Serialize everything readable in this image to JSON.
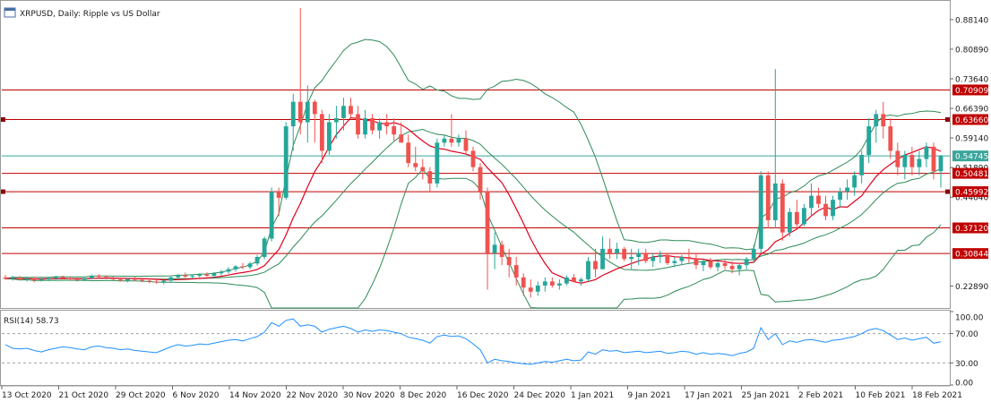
{
  "chart_data": [
    {
      "type": "candlestick",
      "title": "XRPUSD, Daily:  Ripple vs US Dollar",
      "ylim": [
        0.175,
        0.925
      ],
      "y_ticks": [
        0.8814,
        0.8089,
        0.7364,
        0.6639,
        0.5914,
        0.5189,
        0.4464,
        0.2289
      ],
      "y_tick_labels": [
        "0.88140",
        "0.80890",
        "0.73640",
        "0.66390",
        "0.59140",
        "0.51890",
        "0.44640",
        "0.22890"
      ],
      "x_labels": [
        "13 Oct 2020",
        "21 Oct 2020",
        "29 Oct 2020",
        "6 Nov 2020",
        "14 Nov 2020",
        "22 Nov 2020",
        "30 Nov 2020",
        "8 Dec 2020",
        "16 Dec 2020",
        "24 Dec 2020",
        "1 Jan 2021",
        "9 Jan 2021",
        "17 Jan 2021",
        "25 Jan 2021",
        "2 Feb 2021",
        "10 Feb 2021",
        "18 Feb 2021"
      ],
      "current_price": 0.54745,
      "current_price_label": "0.54745",
      "levels": [
        {
          "value": 0.70909,
          "label": "0.70909"
        },
        {
          "value": 0.6366,
          "label": "0.63660"
        },
        {
          "value": 0.50481,
          "label": "0.50481"
        },
        {
          "value": 0.45992,
          "label": "0.45992"
        },
        {
          "value": 0.3712,
          "label": "0.37120"
        },
        {
          "value": 0.30844,
          "label": "0.30844"
        }
      ],
      "indicators": [
        "Bollinger Bands",
        "Moving Average"
      ],
      "colors": {
        "bull": "#26a69a",
        "bear": "#ef5350",
        "level": "#c00000",
        "bollinger": "#2e8b57",
        "ma": "#e0001b",
        "current": "#3aa59a"
      },
      "candles": [
        [
          0.25,
          0.256,
          0.244,
          0.247
        ],
        [
          0.247,
          0.254,
          0.242,
          0.249
        ],
        [
          0.249,
          0.253,
          0.243,
          0.245
        ],
        [
          0.245,
          0.252,
          0.24,
          0.247
        ],
        [
          0.247,
          0.251,
          0.238,
          0.243
        ],
        [
          0.243,
          0.249,
          0.24,
          0.246
        ],
        [
          0.246,
          0.251,
          0.241,
          0.248
        ],
        [
          0.248,
          0.254,
          0.244,
          0.251
        ],
        [
          0.251,
          0.254,
          0.245,
          0.248
        ],
        [
          0.248,
          0.252,
          0.243,
          0.246
        ],
        [
          0.246,
          0.25,
          0.24,
          0.244
        ],
        [
          0.244,
          0.25,
          0.241,
          0.248
        ],
        [
          0.248,
          0.257,
          0.245,
          0.254
        ],
        [
          0.254,
          0.258,
          0.248,
          0.251
        ],
        [
          0.251,
          0.255,
          0.245,
          0.249
        ],
        [
          0.249,
          0.253,
          0.243,
          0.245
        ],
        [
          0.245,
          0.25,
          0.24,
          0.243
        ],
        [
          0.243,
          0.248,
          0.238,
          0.246
        ],
        [
          0.246,
          0.251,
          0.241,
          0.244
        ],
        [
          0.244,
          0.249,
          0.238,
          0.242
        ],
        [
          0.242,
          0.247,
          0.236,
          0.24
        ],
        [
          0.24,
          0.245,
          0.234,
          0.238
        ],
        [
          0.238,
          0.244,
          0.233,
          0.242
        ],
        [
          0.242,
          0.252,
          0.239,
          0.25
        ],
        [
          0.25,
          0.258,
          0.246,
          0.255
        ],
        [
          0.255,
          0.262,
          0.249,
          0.252
        ],
        [
          0.252,
          0.257,
          0.247,
          0.254
        ],
        [
          0.254,
          0.26,
          0.249,
          0.257
        ],
        [
          0.257,
          0.262,
          0.251,
          0.254
        ],
        [
          0.254,
          0.263,
          0.25,
          0.26
        ],
        [
          0.26,
          0.268,
          0.255,
          0.264
        ],
        [
          0.264,
          0.275,
          0.259,
          0.27
        ],
        [
          0.27,
          0.28,
          0.264,
          0.277
        ],
        [
          0.277,
          0.285,
          0.27,
          0.275
        ],
        [
          0.275,
          0.288,
          0.27,
          0.284
        ],
        [
          0.284,
          0.305,
          0.279,
          0.3
        ],
        [
          0.3,
          0.35,
          0.294,
          0.345
        ],
        [
          0.345,
          0.47,
          0.338,
          0.46
        ],
        [
          0.46,
          0.47,
          0.4,
          0.445
        ],
        [
          0.445,
          0.63,
          0.44,
          0.62
        ],
        [
          0.62,
          0.7,
          0.56,
          0.68
        ],
        [
          0.68,
          0.91,
          0.6,
          0.63
        ],
        [
          0.63,
          0.72,
          0.58,
          0.68
        ],
        [
          0.68,
          0.685,
          0.58,
          0.65
        ],
        [
          0.65,
          0.66,
          0.53,
          0.56
        ],
        [
          0.56,
          0.65,
          0.55,
          0.63
        ],
        [
          0.63,
          0.67,
          0.59,
          0.64
        ],
        [
          0.64,
          0.69,
          0.61,
          0.67
        ],
        [
          0.67,
          0.69,
          0.64,
          0.65
        ],
        [
          0.65,
          0.67,
          0.59,
          0.6
        ],
        [
          0.6,
          0.66,
          0.59,
          0.64
        ],
        [
          0.64,
          0.65,
          0.6,
          0.61
        ],
        [
          0.61,
          0.64,
          0.59,
          0.63
        ],
        [
          0.63,
          0.65,
          0.6,
          0.62
        ],
        [
          0.62,
          0.64,
          0.585,
          0.6
        ],
        [
          0.6,
          0.63,
          0.58,
          0.58
        ],
        [
          0.58,
          0.6,
          0.52,
          0.53
        ],
        [
          0.53,
          0.57,
          0.51,
          0.52
        ],
        [
          0.52,
          0.54,
          0.49,
          0.51
        ],
        [
          0.51,
          0.52,
          0.46,
          0.48
        ],
        [
          0.48,
          0.59,
          0.47,
          0.58
        ],
        [
          0.58,
          0.6,
          0.57,
          0.59
        ],
        [
          0.59,
          0.65,
          0.57,
          0.58
        ],
        [
          0.58,
          0.6,
          0.57,
          0.59
        ],
        [
          0.59,
          0.61,
          0.55,
          0.56
        ],
        [
          0.56,
          0.57,
          0.51,
          0.52
        ],
        [
          0.52,
          0.53,
          0.44,
          0.46
        ],
        [
          0.46,
          0.47,
          0.22,
          0.31
        ],
        [
          0.31,
          0.36,
          0.27,
          0.33
        ],
        [
          0.33,
          0.34,
          0.28,
          0.3
        ],
        [
          0.3,
          0.32,
          0.25,
          0.28
        ],
        [
          0.28,
          0.3,
          0.23,
          0.25
        ],
        [
          0.25,
          0.26,
          0.205,
          0.225
        ],
        [
          0.225,
          0.245,
          0.2,
          0.215
        ],
        [
          0.215,
          0.24,
          0.205,
          0.23
        ],
        [
          0.23,
          0.25,
          0.215,
          0.24
        ],
        [
          0.24,
          0.25,
          0.225,
          0.23
        ],
        [
          0.23,
          0.245,
          0.22,
          0.235
        ],
        [
          0.235,
          0.255,
          0.23,
          0.25
        ],
        [
          0.25,
          0.258,
          0.238,
          0.24
        ],
        [
          0.24,
          0.25,
          0.23,
          0.245
        ],
        [
          0.245,
          0.3,
          0.24,
          0.29
        ],
        [
          0.29,
          0.32,
          0.25,
          0.27
        ],
        [
          0.27,
          0.35,
          0.27,
          0.32
        ],
        [
          0.32,
          0.345,
          0.295,
          0.31
        ],
        [
          0.31,
          0.335,
          0.295,
          0.32
        ],
        [
          0.32,
          0.325,
          0.29,
          0.295
        ],
        [
          0.295,
          0.32,
          0.27,
          0.3
        ],
        [
          0.3,
          0.32,
          0.28,
          0.31
        ],
        [
          0.31,
          0.32,
          0.285,
          0.29
        ],
        [
          0.29,
          0.31,
          0.275,
          0.3
        ],
        [
          0.3,
          0.315,
          0.285,
          0.305
        ],
        [
          0.305,
          0.31,
          0.28,
          0.285
        ],
        [
          0.285,
          0.3,
          0.275,
          0.29
        ],
        [
          0.29,
          0.305,
          0.28,
          0.3
        ],
        [
          0.3,
          0.32,
          0.285,
          0.295
        ],
        [
          0.295,
          0.31,
          0.27,
          0.28
        ],
        [
          0.28,
          0.295,
          0.265,
          0.29
        ],
        [
          0.29,
          0.298,
          0.27,
          0.275
        ],
        [
          0.275,
          0.29,
          0.265,
          0.285
        ],
        [
          0.285,
          0.292,
          0.27,
          0.278
        ],
        [
          0.278,
          0.29,
          0.26,
          0.27
        ],
        [
          0.27,
          0.285,
          0.255,
          0.28
        ],
        [
          0.28,
          0.3,
          0.27,
          0.295
        ],
        [
          0.295,
          0.33,
          0.285,
          0.32
        ],
        [
          0.32,
          0.51,
          0.31,
          0.5
        ],
        [
          0.5,
          0.51,
          0.37,
          0.39
        ],
        [
          0.39,
          0.76,
          0.37,
          0.48
        ],
        [
          0.48,
          0.49,
          0.34,
          0.36
        ],
        [
          0.36,
          0.42,
          0.35,
          0.41
        ],
        [
          0.41,
          0.44,
          0.37,
          0.38
        ],
        [
          0.38,
          0.43,
          0.375,
          0.42
        ],
        [
          0.42,
          0.48,
          0.4,
          0.45
        ],
        [
          0.45,
          0.47,
          0.42,
          0.43
        ],
        [
          0.43,
          0.45,
          0.39,
          0.4
        ],
        [
          0.4,
          0.45,
          0.39,
          0.44
        ],
        [
          0.44,
          0.47,
          0.42,
          0.46
        ],
        [
          0.46,
          0.49,
          0.44,
          0.47
        ],
        [
          0.47,
          0.51,
          0.45,
          0.5
        ],
        [
          0.5,
          0.56,
          0.48,
          0.55
        ],
        [
          0.55,
          0.64,
          0.53,
          0.62
        ],
        [
          0.62,
          0.66,
          0.58,
          0.65
        ],
        [
          0.65,
          0.68,
          0.59,
          0.62
        ],
        [
          0.62,
          0.64,
          0.54,
          0.56
        ],
        [
          0.56,
          0.58,
          0.5,
          0.52
        ],
        [
          0.52,
          0.56,
          0.49,
          0.55
        ],
        [
          0.55,
          0.57,
          0.5,
          0.52
        ],
        [
          0.52,
          0.56,
          0.5,
          0.54
        ],
        [
          0.54,
          0.58,
          0.52,
          0.57
        ],
        [
          0.57,
          0.58,
          0.49,
          0.51
        ],
        [
          0.51,
          0.55,
          0.47,
          0.547
        ]
      ]
    },
    {
      "type": "line",
      "title": "RSI(14) 58.73",
      "ylim": [
        0,
        100
      ],
      "y_ticks": [
        0,
        30,
        70,
        100
      ],
      "y_tick_labels": [
        "0.00",
        "30.00",
        "70.00",
        "100.00"
      ],
      "levels": [
        30,
        70
      ],
      "colors": {
        "line": "#1e90ff",
        "level": "#a0a0a0"
      },
      "values": [
        55,
        50,
        49,
        50,
        47,
        45,
        48,
        50,
        52,
        51,
        49,
        48,
        52,
        53,
        51,
        50,
        48,
        49,
        47,
        46,
        45,
        44,
        48,
        52,
        55,
        53,
        54,
        56,
        55,
        57,
        59,
        61,
        62,
        60,
        63,
        66,
        72,
        85,
        80,
        88,
        90,
        80,
        82,
        80,
        72,
        76,
        78,
        80,
        77,
        72,
        75,
        73,
        75,
        74,
        72,
        70,
        65,
        63,
        61,
        57,
        66,
        68,
        66,
        67,
        63,
        56,
        48,
        30,
        35,
        33,
        32,
        30,
        29,
        28,
        30,
        32,
        31,
        33,
        35,
        33,
        34,
        45,
        42,
        48,
        46,
        47,
        44,
        45,
        46,
        44,
        45,
        46,
        43,
        44,
        46,
        45,
        42,
        44,
        42,
        43,
        42,
        40,
        43,
        45,
        50,
        78,
        62,
        70,
        55,
        60,
        58,
        61,
        62,
        60,
        58,
        61,
        62,
        64,
        66,
        70,
        75,
        77,
        74,
        68,
        62,
        64,
        61,
        63,
        65,
        57,
        58.73
      ]
    }
  ]
}
